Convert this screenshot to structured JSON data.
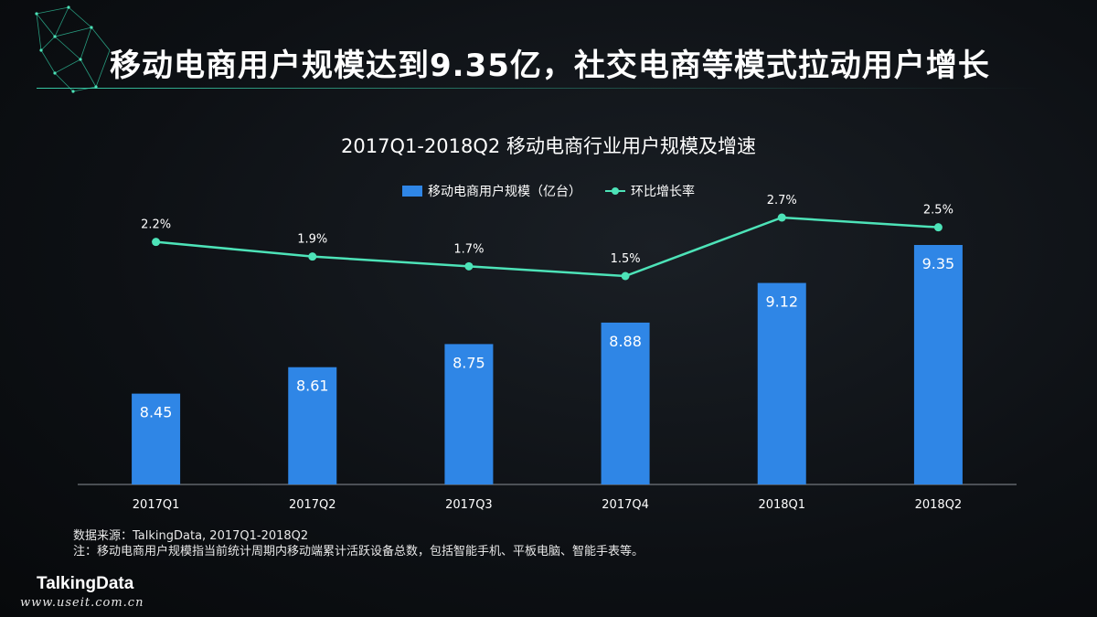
{
  "page_title": "移动电商用户规模达到9.35亿，社交电商等模式拉动用户增长",
  "colors": {
    "bar": "#2f86e6",
    "line": "#4de3b8",
    "accent": "#3cdcb4"
  },
  "chart_data": {
    "type": "bar",
    "title": "2017Q1-2018Q2 移动电商行业用户规模及增速",
    "categories": [
      "2017Q1",
      "2017Q2",
      "2017Q3",
      "2017Q4",
      "2018Q1",
      "2018Q2"
    ],
    "series": [
      {
        "name": "移动电商用户规模（亿台）",
        "type": "bar",
        "values": [
          8.45,
          8.61,
          8.75,
          8.88,
          9.12,
          9.35
        ],
        "labels": [
          "8.45",
          "8.61",
          "8.75",
          "8.88",
          "9.12",
          "9.35"
        ]
      },
      {
        "name": "环比增长率",
        "type": "line",
        "values": [
          2.2,
          1.9,
          1.7,
          1.5,
          2.7,
          2.5
        ],
        "labels": [
          "2.2%",
          "1.9%",
          "1.7%",
          "1.5%",
          "2.7%",
          "2.5%"
        ]
      }
    ],
    "legend_position": "top-center",
    "grid": false
  },
  "notes": {
    "source": "数据来源：TalkingData, 2017Q1-2018Q2",
    "note": "注：移动电商用户规模指当前统计周期内移动端累计活跃设备总数，包括智能手机、平板电脑、智能手表等。"
  },
  "brand": "TalkingData",
  "website": "www.useit.com.cn"
}
